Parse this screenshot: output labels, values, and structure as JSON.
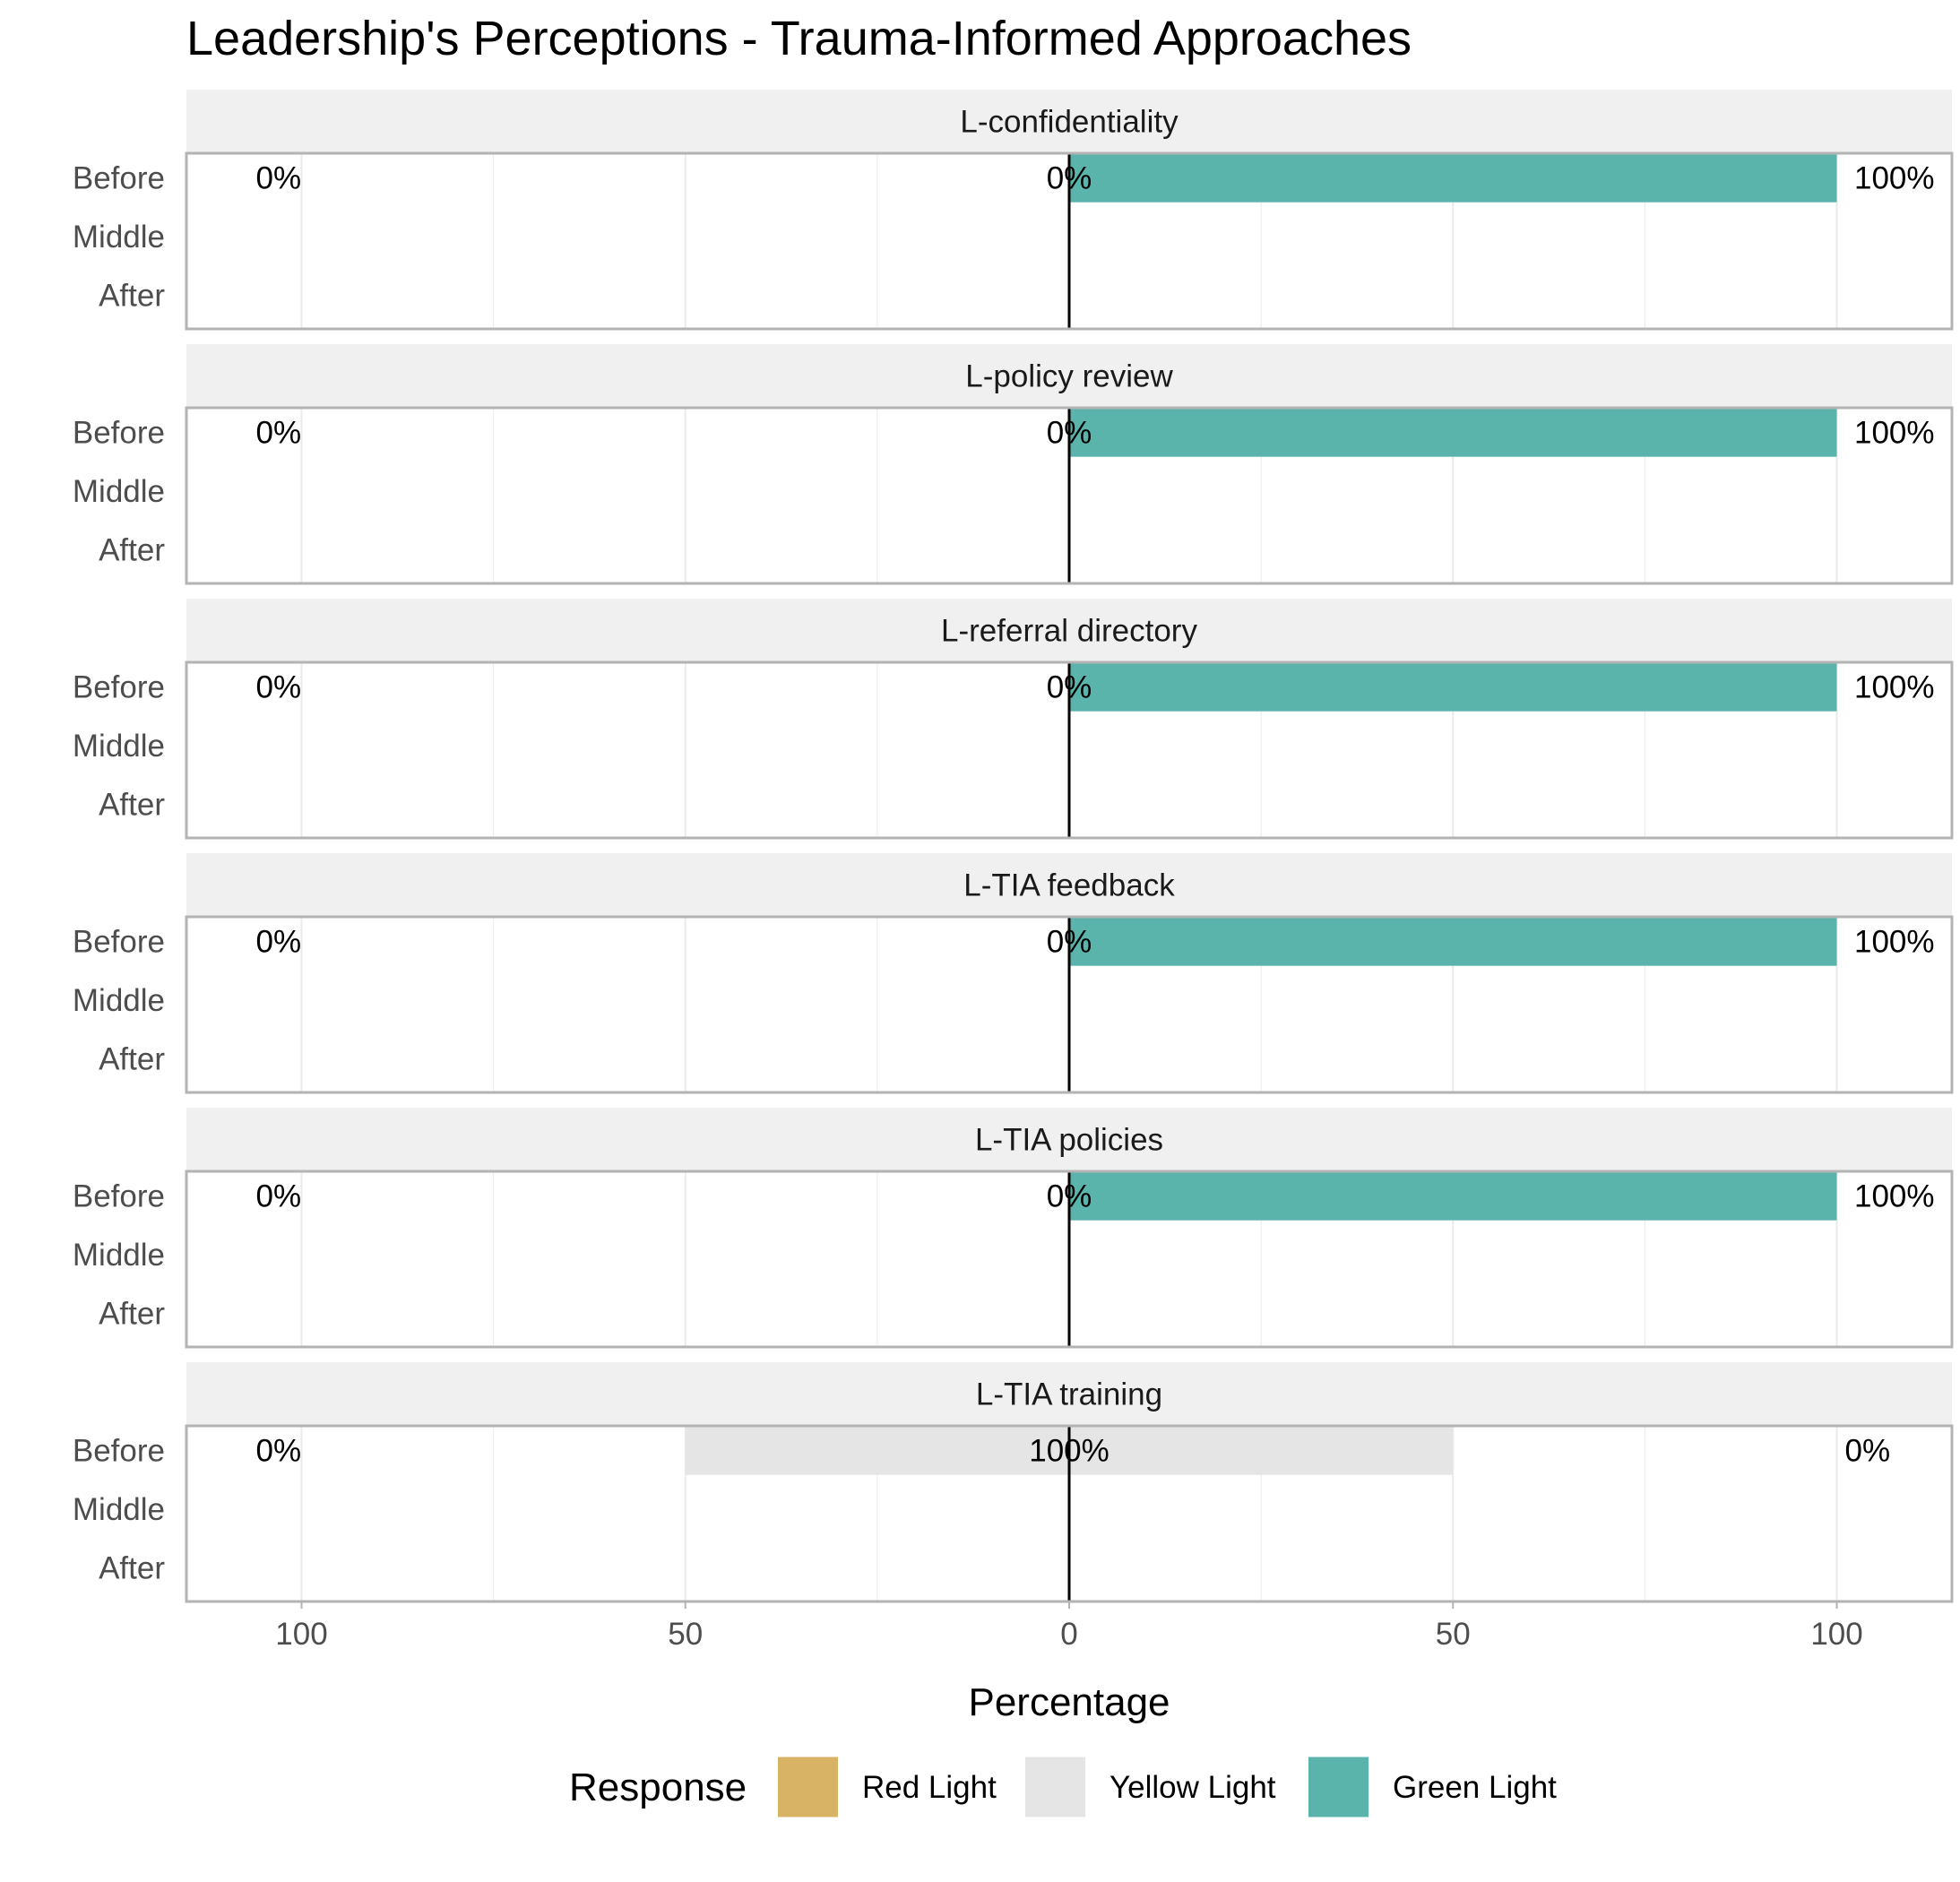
{
  "chart_data": {
    "type": "bar",
    "orientation": "horizontal-diverging",
    "title": "Leadership's Perceptions - Trauma-Informed Approaches",
    "xlabel": "Percentage",
    "ylabel": "",
    "xlim": [
      -115,
      115
    ],
    "x_ticks": [
      -100,
      -50,
      0,
      50,
      100
    ],
    "x_tick_labels": [
      "100",
      "50",
      "0",
      "50",
      "100"
    ],
    "grid": true,
    "categories": [
      "Before",
      "Middle",
      "After"
    ],
    "legend": {
      "title": "Response",
      "placement": "bottom",
      "entries": [
        {
          "name": "Red Light",
          "color": "#D9B365"
        },
        {
          "name": "Yellow Light",
          "color": "#E5E5E5"
        },
        {
          "name": "Green Light",
          "color": "#5AB4AC"
        }
      ]
    },
    "panels": [
      {
        "name": "L-confidentiality",
        "rows": [
          {
            "category": "Before",
            "red": 0,
            "yellow": 0,
            "green": 100,
            "labels": {
              "left": "0%",
              "center": "0%",
              "right": "100%"
            }
          }
        ]
      },
      {
        "name": "L-policy review",
        "rows": [
          {
            "category": "Before",
            "red": 0,
            "yellow": 0,
            "green": 100,
            "labels": {
              "left": "0%",
              "center": "0%",
              "right": "100%"
            }
          }
        ]
      },
      {
        "name": "L-referral directory",
        "rows": [
          {
            "category": "Before",
            "red": 0,
            "yellow": 0,
            "green": 100,
            "labels": {
              "left": "0%",
              "center": "0%",
              "right": "100%"
            }
          }
        ]
      },
      {
        "name": "L-TIA feedback",
        "rows": [
          {
            "category": "Before",
            "red": 0,
            "yellow": 0,
            "green": 100,
            "labels": {
              "left": "0%",
              "center": "0%",
              "right": "100%"
            }
          }
        ]
      },
      {
        "name": "L-TIA policies",
        "rows": [
          {
            "category": "Before",
            "red": 0,
            "yellow": 0,
            "green": 100,
            "labels": {
              "left": "0%",
              "center": "0%",
              "right": "100%"
            }
          }
        ]
      },
      {
        "name": "L-TIA training",
        "rows": [
          {
            "category": "Before",
            "red": 0,
            "yellow": 100,
            "green": 0,
            "labels": {
              "left": "0%",
              "center": "100%",
              "right": "0%"
            }
          }
        ]
      }
    ]
  }
}
